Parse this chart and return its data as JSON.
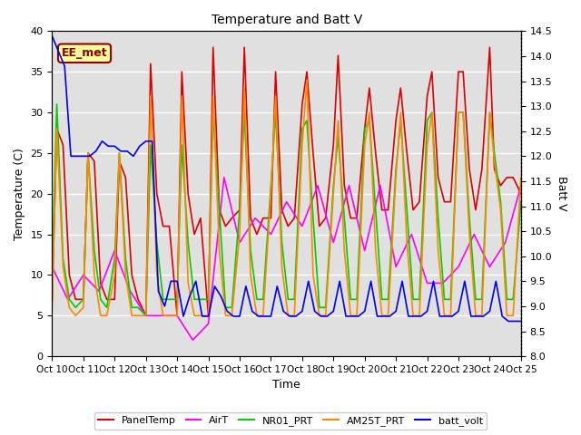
{
  "title": "Temperature and Batt V",
  "xlabel": "Time",
  "ylabel_left": "Temperature (C)",
  "ylabel_right": "Batt V",
  "xlim": [
    0,
    15
  ],
  "ylim_left": [
    0,
    40
  ],
  "ylim_right": [
    8.0,
    14.5
  ],
  "xtick_labels": [
    "Oct 10",
    "Oct 11",
    "Oct 12",
    "Oct 13",
    "Oct 14",
    "Oct 15",
    "Oct 16",
    "Oct 17",
    "Oct 18",
    "Oct 19",
    "Oct 20",
    "Oct 21",
    "Oct 22",
    "Oct 23",
    "Oct 24",
    "Oct 25"
  ],
  "background_color": "#e0e0e0",
  "annotation_text": "EE_met",
  "annotation_color": "#8b0000",
  "annotation_bg": "#ffff99",
  "PanelTemp_color": "#dd0000",
  "AirT_color": "#ff00ff",
  "NR01_PRT_color": "#00cc00",
  "AM25T_PRT_color": "#ff8800",
  "batt_volt_color": "#0000ee",
  "PanelTemp_x": [
    0.0,
    0.15,
    0.35,
    0.55,
    0.75,
    1.0,
    1.15,
    1.35,
    1.55,
    1.75,
    2.0,
    2.15,
    2.35,
    2.55,
    2.75,
    3.0,
    3.15,
    3.35,
    3.55,
    3.75,
    4.0,
    4.15,
    4.35,
    4.55,
    4.75,
    5.0,
    5.15,
    5.35,
    5.55,
    5.75,
    6.0,
    6.15,
    6.35,
    6.55,
    6.75,
    7.0,
    7.15,
    7.35,
    7.55,
    7.75,
    8.0,
    8.15,
    8.35,
    8.55,
    8.75,
    9.0,
    9.15,
    9.35,
    9.55,
    9.75,
    10.0,
    10.15,
    10.35,
    10.55,
    10.75,
    11.0,
    11.15,
    11.35,
    11.55,
    11.75,
    12.0,
    12.15,
    12.35,
    12.55,
    12.75,
    13.0,
    13.15,
    13.35,
    13.55,
    13.75,
    14.0,
    14.15,
    14.35,
    14.55,
    14.75,
    15.0
  ],
  "PanelTemp_y": [
    7,
    28,
    26,
    10,
    7,
    7,
    25,
    24,
    9,
    7,
    7,
    24,
    22,
    10,
    7,
    5,
    36,
    20,
    16,
    16,
    5,
    35,
    20,
    15,
    17,
    5,
    38,
    18,
    16,
    17,
    18,
    38,
    17,
    15,
    17,
    17,
    35,
    18,
    16,
    17,
    31,
    35,
    25,
    16,
    17,
    26,
    37,
    21,
    17,
    17,
    28,
    33,
    25,
    18,
    18,
    29,
    33,
    25,
    18,
    19,
    32,
    35,
    22,
    19,
    19,
    35,
    35,
    23,
    18,
    23,
    38,
    23,
    21,
    22,
    22,
    20
  ],
  "AirT_x": [
    0.0,
    0.5,
    1.0,
    1.5,
    2.0,
    2.5,
    3.0,
    3.5,
    4.0,
    4.5,
    5.0,
    5.5,
    6.0,
    6.5,
    7.0,
    7.5,
    8.0,
    8.5,
    9.0,
    9.5,
    10.0,
    10.5,
    11.0,
    11.5,
    12.0,
    12.5,
    13.0,
    13.5,
    14.0,
    14.5,
    15.0
  ],
  "AirT_y": [
    11,
    7,
    10,
    8,
    13,
    8,
    5,
    5,
    5,
    2,
    4,
    22,
    14,
    17,
    15,
    19,
    16,
    21,
    14,
    21,
    13,
    21,
    11,
    15,
    9,
    9,
    11,
    15,
    11,
    14,
    21
  ],
  "NR01_PRT_x": [
    0.0,
    0.15,
    0.35,
    0.55,
    0.75,
    1.0,
    1.15,
    1.35,
    1.55,
    1.75,
    2.0,
    2.15,
    2.35,
    2.55,
    2.75,
    3.0,
    3.15,
    3.35,
    3.55,
    3.75,
    4.0,
    4.15,
    4.35,
    4.55,
    4.75,
    5.0,
    5.15,
    5.35,
    5.55,
    5.75,
    6.0,
    6.15,
    6.35,
    6.55,
    6.75,
    7.0,
    7.15,
    7.35,
    7.55,
    7.75,
    8.0,
    8.15,
    8.35,
    8.55,
    8.75,
    9.0,
    9.15,
    9.35,
    9.55,
    9.75,
    10.0,
    10.15,
    10.35,
    10.55,
    10.75,
    11.0,
    11.15,
    11.35,
    11.55,
    11.75,
    12.0,
    12.15,
    12.35,
    12.55,
    12.75,
    13.0,
    13.15,
    13.35,
    13.55,
    13.75,
    14.0,
    14.15,
    14.35,
    14.55,
    14.75,
    15.0
  ],
  "NR01_PRT_y": [
    10,
    31,
    12,
    7,
    6,
    7,
    25,
    13,
    7,
    6,
    12,
    25,
    12,
    6,
    6,
    5,
    26,
    14,
    7,
    7,
    7,
    26,
    14,
    7,
    7,
    7,
    30,
    18,
    6,
    6,
    18,
    30,
    13,
    7,
    7,
    21,
    30,
    14,
    7,
    7,
    28,
    29,
    17,
    6,
    6,
    21,
    27,
    17,
    7,
    7,
    28,
    29,
    18,
    7,
    7,
    23,
    29,
    18,
    7,
    7,
    29,
    30,
    17,
    7,
    7,
    30,
    30,
    17,
    7,
    7,
    30,
    25,
    19,
    7,
    7,
    19
  ],
  "AM25T_PRT_x": [
    0.0,
    0.15,
    0.35,
    0.55,
    0.75,
    1.0,
    1.15,
    1.35,
    1.55,
    1.75,
    2.0,
    2.15,
    2.35,
    2.55,
    2.75,
    3.0,
    3.15,
    3.35,
    3.55,
    3.75,
    4.0,
    4.15,
    4.35,
    4.55,
    4.75,
    5.0,
    5.15,
    5.35,
    5.55,
    5.75,
    6.0,
    6.15,
    6.35,
    6.55,
    6.75,
    7.0,
    7.15,
    7.35,
    7.55,
    7.75,
    8.0,
    8.15,
    8.35,
    8.55,
    8.75,
    9.0,
    9.15,
    9.35,
    9.55,
    9.75,
    10.0,
    10.15,
    10.35,
    10.55,
    10.75,
    11.0,
    11.15,
    11.35,
    11.55,
    11.75,
    12.0,
    12.15,
    12.35,
    12.55,
    12.75,
    13.0,
    13.15,
    13.35,
    13.55,
    13.75,
    14.0,
    14.15,
    14.35,
    14.55,
    14.75,
    15.0
  ],
  "AM25T_PRT_y": [
    6,
    28,
    11,
    6,
    5,
    6,
    25,
    10,
    5,
    5,
    10,
    25,
    10,
    5,
    5,
    5,
    32,
    10,
    5,
    5,
    5,
    32,
    9,
    5,
    5,
    5,
    32,
    13,
    5,
    5,
    15,
    33,
    10,
    5,
    5,
    20,
    32,
    11,
    5,
    5,
    26,
    34,
    10,
    5,
    5,
    20,
    29,
    13,
    5,
    5,
    26,
    30,
    13,
    5,
    5,
    22,
    30,
    14,
    5,
    5,
    26,
    30,
    13,
    5,
    5,
    30,
    30,
    15,
    5,
    5,
    30,
    24,
    18,
    5,
    5,
    22
  ],
  "batt_volt_x": [
    0.0,
    0.2,
    0.4,
    0.6,
    0.8,
    1.0,
    1.2,
    1.4,
    1.6,
    1.8,
    2.0,
    2.2,
    2.4,
    2.6,
    2.8,
    3.0,
    3.2,
    3.4,
    3.6,
    3.8,
    4.0,
    4.2,
    4.4,
    4.6,
    4.8,
    5.0,
    5.2,
    5.4,
    5.6,
    5.8,
    6.0,
    6.2,
    6.4,
    6.6,
    6.8,
    7.0,
    7.2,
    7.4,
    7.6,
    7.8,
    8.0,
    8.2,
    8.4,
    8.6,
    8.8,
    9.0,
    9.2,
    9.4,
    9.6,
    9.8,
    10.0,
    10.2,
    10.4,
    10.6,
    10.8,
    11.0,
    11.2,
    11.4,
    11.6,
    11.8,
    12.0,
    12.2,
    12.4,
    12.6,
    12.8,
    13.0,
    13.2,
    13.4,
    13.6,
    13.8,
    14.0,
    14.2,
    14.4,
    14.6,
    14.8,
    15.0
  ],
  "batt_volt_y": [
    14.4,
    14.1,
    13.8,
    12.0,
    12.0,
    12.0,
    12.0,
    12.1,
    12.3,
    12.2,
    12.2,
    12.1,
    12.1,
    12.0,
    12.2,
    12.3,
    12.3,
    9.3,
    9.0,
    9.5,
    9.5,
    8.8,
    9.2,
    9.5,
    8.8,
    8.8,
    9.4,
    9.2,
    8.9,
    8.8,
    8.8,
    9.4,
    8.9,
    8.8,
    8.8,
    8.8,
    9.4,
    8.9,
    8.8,
    8.8,
    8.9,
    9.5,
    8.9,
    8.8,
    8.8,
    8.9,
    9.5,
    8.8,
    8.8,
    8.8,
    8.9,
    9.5,
    8.8,
    8.8,
    8.8,
    8.9,
    9.5,
    8.8,
    8.8,
    8.8,
    8.9,
    9.5,
    8.8,
    8.8,
    8.8,
    8.9,
    9.5,
    8.8,
    8.8,
    8.8,
    8.9,
    9.5,
    8.8,
    8.7,
    8.7,
    8.7
  ]
}
